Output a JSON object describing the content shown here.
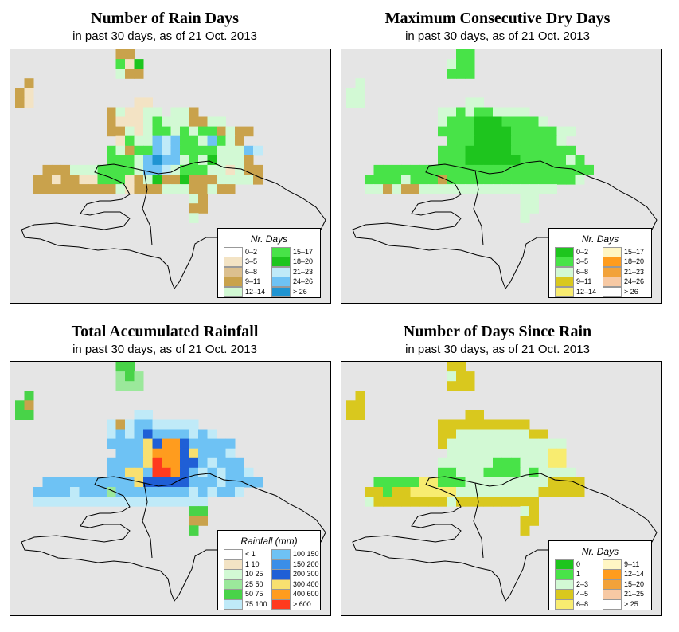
{
  "panels": [
    {
      "id": "rain-days",
      "title": "Number of Rain Days",
      "subtitle": "in past 30 days, as of  21 Oct. 2013",
      "legend": {
        "title": "Nr. Days",
        "entries": [
          {
            "label": "0–2",
            "color": "#ffffff"
          },
          {
            "label": "3–5",
            "color": "#f3e3c4"
          },
          {
            "label": "6–8",
            "color": "#dcc08f"
          },
          {
            "label": "9–11",
            "color": "#c9a24c"
          },
          {
            "label": "12–14",
            "color": "#d2f9d4"
          },
          {
            "label": "15–17",
            "color": "#48e348"
          },
          {
            "label": "18–20",
            "color": "#1ec51e"
          },
          {
            "label": "21–23",
            "color": "#bfeaf8"
          },
          {
            "label": "24–26",
            "color": "#6ec2f4"
          },
          {
            "label": "> 26",
            "color": "#1f94d2"
          }
        ]
      }
    },
    {
      "id": "max-dry-days",
      "title": "Maximum Consecutive Dry Days",
      "subtitle": "in past 30 days, as of  21 Oct. 2013",
      "legend": {
        "title": "Nr. Days",
        "entries": [
          {
            "label": "0–2",
            "color": "#1ec51e"
          },
          {
            "label": "3–5",
            "color": "#48e348"
          },
          {
            "label": "6–8",
            "color": "#d2f9d4"
          },
          {
            "label": "9–11",
            "color": "#d9c81e"
          },
          {
            "label": "12–14",
            "color": "#f8ec70"
          },
          {
            "label": "15–17",
            "color": "#fff6c4"
          },
          {
            "label": "18–20",
            "color": "#ff9c1e"
          },
          {
            "label": "21–23",
            "color": "#f2a23a"
          },
          {
            "label": "24–26",
            "color": "#f7c9a4"
          },
          {
            "label": "> 26",
            "color": "#ffffff"
          }
        ]
      }
    },
    {
      "id": "total-rainfall",
      "title": "Total Accumulated Rainfall",
      "subtitle": "in past 30 days, as of  21 Oct. 2013",
      "legend": {
        "title": "Rainfall (mm)",
        "entries": [
          {
            "label": "< 1",
            "color": "#ffffff"
          },
          {
            "label": "1    10",
            "color": "#f3e3c4"
          },
          {
            "label": "10    25",
            "color": "#d2f9d4"
          },
          {
            "label": "25    50",
            "color": "#9be89b"
          },
          {
            "label": "50    75",
            "color": "#48d348"
          },
          {
            "label": "75  100",
            "color": "#bfeaf8"
          },
          {
            "label": "100  150",
            "color": "#6ec2f4"
          },
          {
            "label": "150  200",
            "color": "#3a8ee8"
          },
          {
            "label": "200  300",
            "color": "#1f5fd6"
          },
          {
            "label": "300  400",
            "color": "#f8e070"
          },
          {
            "label": "400  600",
            "color": "#ff9c1e"
          },
          {
            "label": "> 600",
            "color": "#ff3a1e"
          }
        ]
      }
    },
    {
      "id": "days-since-rain",
      "title": "Number of Days Since Rain",
      "subtitle": "in past 30 days, as of  21 Oct. 2013",
      "legend": {
        "title": "Nr. Days",
        "entries": [
          {
            "label": "0",
            "color": "#1ec51e"
          },
          {
            "label": "1",
            "color": "#48e348"
          },
          {
            "label": "2–3",
            "color": "#d2f9d4"
          },
          {
            "label": "4–5",
            "color": "#d9c81e"
          },
          {
            "label": "6–8",
            "color": "#f8ec70"
          },
          {
            "label": "9–11",
            "color": "#fff6c4"
          },
          {
            "label": "12–14",
            "color": "#ff9c1e"
          },
          {
            "label": "15–20",
            "color": "#f2a23a"
          },
          {
            "label": "21–25",
            "color": "#f7c9a4"
          },
          {
            "label": "> 25",
            "color": "#ffffff"
          }
        ]
      }
    }
  ],
  "grids": {
    "rain-days": [
      "...........dd.......................",
      "...........GcD......................",
      "...........gdd......................",
      ".d..................................",
      "dc..................................",
      "dc...........cc.....................",
      "..........dgccgg.ggd................",
      "..........dcccgGgggddgg.............",
      "..........ddgcgGGgGgGGdgdd..........",
      "...........cGggLlLGGgLGgd...........",
      "..........GgdGGLlLGGGGgggLl.........",
      "..........GGGgLbLLgGgDgggd..........",
      "...dddgggGGGGgLLlgGGGggcgdd.........",
      "..ddcddccGGGcdgDddDdddggggd.........",
      "..dddddddddgcdddgggddgdd............",
      "...................gd...............",
      "...................dd...............",
      "...................g................"
    ],
    "max-dry-days": [
      "............GG......................",
      "...........gGG......................",
      "...........GGG......................",
      ".g..................................",
      "gg..................................",
      "gg...........gg.....................",
      "..........ggGgGGgggg................",
      "..........gGGGDDDGGGGg..............",
      "..........GGGGDDDDGGGGGgg...........",
      "...........GGGDDDDGGGGGg............",
      "..........GGGDDDDDGGGGGGG...........",
      "..........GGGDDDDDDGGGGGgG..........",
      "...GGGGGGGGGGGGGGGGGGGGGGGG.........",
      "..GGGGgGGGdGGGGGGGGGGGGGGg..........",
      "..ggdgddggggggggggggggg.............",
      "...................gg...............",
      "...................gg...............",
      "...................g................"
    ],
    "total-rainfall": [
      "...........ff.......................",
      "...........efe......................",
      "...........eee......................",
      ".f..................................",
      "fd..................................",
      "ff...........ll.....................",
      "..........ldlLLlllll................",
      "..........lLlLTLLLLlLl..............",
      "..........LLLLYTOOTLLLLL............",
      "...........LLLYOOOTYLLLl............",
      "..........LLLLYROOTTLlLLL...........",
      "..........LLYYLRROTLlLlLLl..........",
      "...LLLLLLLLLLYTTTTTLLLlLLLL.........",
      "..LLLLlLLLeLLLLLLLLlLlLLl...........",
      "..lllllllllllllllllll...............",
      "...................ff...............",
      "...................dd...............",
      "...................f................"
    ],
    "days-since-rain": [
      "...........mm.......................",
      "...........gmm......................",
      "...........mmm......................",
      ".m..................................",
      "mm..................................",
      "mm...........mm.....................",
      "..........mmmmmmmmmm................",
      "..........mmggggggggmm..............",
      "..........mggggggggggggg............",
      "...........gggggggggggyy............",
      "..........ggggggGGGgggyy............",
      "..........GGgggGGGGgGgggg...........",
      "...GGGGGyyGGGgggggggggmmmm..........",
      "..mmGmmyyyyygggggggggmmmmm..........",
      "..gmmmmmmmmgmmmmmmmmm...............",
      "...................gm...............",
      "...................mm...............",
      "...................m................"
    ]
  }
}
